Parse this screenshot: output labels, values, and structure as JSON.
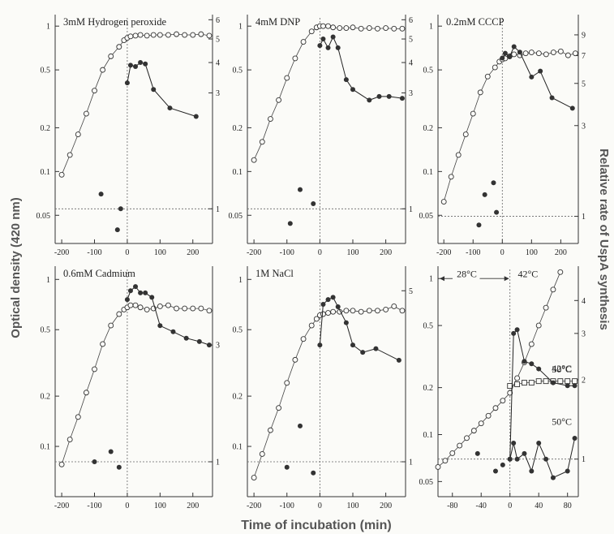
{
  "figure": {
    "ylabel_left": "Optical density (420 nm)",
    "ylabel_right": "Relative rate of UspA synthesis",
    "xlabel": "Time of incubation (min)"
  },
  "chart_data": [
    {
      "type": "line",
      "title": "3mM Hydrogen peroxide",
      "xlim": [
        -220,
        260
      ],
      "xticks": [
        -200,
        -100,
        0,
        100,
        200
      ],
      "od_ylim": [
        0.032,
        1.2
      ],
      "od_yscale": "log",
      "od_yticks": [
        0.05,
        0.1,
        0.2,
        0.5,
        1
      ],
      "rate_ylim": [
        0.72,
        6.3
      ],
      "rate_yticks": [
        1,
        3,
        4,
        5,
        6
      ],
      "baseline_rate": 1,
      "shift_time": 0,
      "series": [
        {
          "marker": "open-circle",
          "x": [
            -200,
            -175,
            -150,
            -125,
            -100,
            -75,
            -50,
            -25,
            -10,
            0,
            10,
            25,
            40,
            60,
            80,
            100,
            125,
            150,
            175,
            200,
            225,
            250
          ],
          "y": [
            0.095,
            0.13,
            0.18,
            0.25,
            0.36,
            0.5,
            0.62,
            0.72,
            0.8,
            0.83,
            0.85,
            0.86,
            0.87,
            0.86,
            0.87,
            0.87,
            0.87,
            0.88,
            0.87,
            0.87,
            0.88,
            0.86
          ]
        },
        {
          "marker": "filled-circle",
          "x": [
            -80,
            -30,
            -20,
            0,
            10,
            25,
            40,
            55,
            80,
            130,
            210
          ],
          "y": [
            1.15,
            0.82,
            1.0,
            3.3,
            3.9,
            3.85,
            4.0,
            3.95,
            3.1,
            2.6,
            2.4
          ]
        }
      ]
    },
    {
      "type": "line",
      "title": "4mM DNP",
      "xlim": [
        -220,
        260
      ],
      "xticks": [
        -200,
        -100,
        0,
        100,
        200
      ],
      "od_ylim": [
        0.032,
        1.2
      ],
      "od_yscale": "log",
      "od_yticks": [
        0.05,
        0.1,
        0.2,
        0.5,
        1
      ],
      "rate_ylim": [
        0.72,
        6.3
      ],
      "rate_yticks": [
        1,
        3,
        4,
        5,
        6
      ],
      "baseline_rate": 1,
      "shift_time": 0,
      "series": [
        {
          "marker": "open-circle",
          "x": [
            -200,
            -175,
            -150,
            -125,
            -100,
            -75,
            -50,
            -25,
            -10,
            0,
            10,
            25,
            40,
            60,
            80,
            100,
            125,
            150,
            175,
            200,
            225,
            250
          ],
          "y": [
            0.12,
            0.16,
            0.23,
            0.31,
            0.44,
            0.6,
            0.78,
            0.92,
            0.98,
            1.0,
            1.0,
            1.0,
            0.98,
            0.97,
            0.97,
            0.98,
            0.96,
            0.97,
            0.96,
            0.97,
            0.96,
            0.96
          ]
        },
        {
          "marker": "filled-circle",
          "x": [
            -90,
            -60,
            -20,
            0,
            10,
            25,
            40,
            55,
            80,
            100,
            150,
            180,
            210,
            250
          ],
          "y": [
            0.87,
            1.2,
            1.05,
            4.7,
            5.0,
            4.6,
            5.1,
            4.6,
            3.4,
            3.1,
            2.8,
            2.9,
            2.9,
            2.85
          ]
        }
      ]
    },
    {
      "type": "line",
      "title": "0.2mM CCCP",
      "xlim": [
        -220,
        260
      ],
      "xticks": [
        -200,
        -100,
        0,
        100,
        200
      ],
      "od_ylim": [
        0.032,
        1.2
      ],
      "od_yscale": "log",
      "od_yticks": [
        0.05,
        0.1,
        0.2,
        0.5,
        1
      ],
      "rate_ylim": [
        0.72,
        11.5
      ],
      "rate_yticks": [
        1,
        3,
        5,
        7,
        9
      ],
      "baseline_rate": 1,
      "shift_time": 0,
      "series": [
        {
          "marker": "open-circle",
          "x": [
            -200,
            -175,
            -150,
            -125,
            -100,
            -75,
            -50,
            -25,
            -10,
            0,
            10,
            25,
            40,
            60,
            80,
            100,
            125,
            150,
            175,
            200,
            225,
            250
          ],
          "y": [
            0.062,
            0.092,
            0.13,
            0.18,
            0.25,
            0.35,
            0.45,
            0.52,
            0.57,
            0.59,
            0.6,
            0.62,
            0.64,
            0.63,
            0.65,
            0.66,
            0.65,
            0.64,
            0.66,
            0.67,
            0.63,
            0.65
          ]
        },
        {
          "marker": "filled-circle",
          "x": [
            -80,
            -60,
            -30,
            -20,
            0,
            10,
            25,
            40,
            60,
            100,
            130,
            170,
            240
          ],
          "y": [
            0.9,
            1.3,
            1.5,
            1.05,
            6.8,
            7.2,
            6.9,
            7.8,
            7.3,
            5.4,
            5.8,
            4.2,
            3.7
          ]
        }
      ]
    },
    {
      "type": "line",
      "title": "0.6mM Cadmium",
      "xlim": [
        -220,
        260
      ],
      "xticks": [
        -200,
        -100,
        0,
        100,
        200
      ],
      "od_ylim": [
        0.05,
        1.2
      ],
      "od_yscale": "log",
      "od_yticks": [
        0.1,
        0.2,
        0.5,
        1
      ],
      "rate_ylim": [
        0.72,
        6.3
      ],
      "rate_yticks": [
        1,
        3
      ],
      "baseline_rate": 1,
      "shift_time": 0,
      "series": [
        {
          "marker": "open-circle",
          "x": [
            -200,
            -175,
            -150,
            -125,
            -100,
            -75,
            -50,
            -25,
            -10,
            0,
            10,
            25,
            40,
            60,
            80,
            100,
            125,
            150,
            175,
            200,
            225,
            250
          ],
          "y": [
            0.078,
            0.11,
            0.15,
            0.21,
            0.29,
            0.41,
            0.53,
            0.62,
            0.66,
            0.68,
            0.7,
            0.7,
            0.68,
            0.66,
            0.67,
            0.69,
            0.7,
            0.67,
            0.67,
            0.67,
            0.67,
            0.65
          ]
        },
        {
          "marker": "filled-circle",
          "x": [
            -100,
            -50,
            -25,
            0,
            10,
            25,
            40,
            55,
            75,
            100,
            140,
            180,
            220,
            250
          ],
          "y": [
            1.0,
            1.1,
            0.95,
            4.6,
            5.0,
            5.2,
            4.9,
            4.9,
            4.7,
            3.6,
            3.4,
            3.2,
            3.1,
            3.0
          ]
        }
      ]
    },
    {
      "type": "line",
      "title": "1M NaCl",
      "xlim": [
        -220,
        260
      ],
      "xticks": [
        -200,
        -100,
        0,
        100,
        200
      ],
      "od_ylim": [
        0.05,
        1.2
      ],
      "od_yscale": "log",
      "od_yticks": [
        0.1,
        0.2,
        0.5,
        1
      ],
      "rate_ylim": [
        0.72,
        6.3
      ],
      "rate_yticks": [
        1,
        5
      ],
      "baseline_rate": 1,
      "shift_time": 0,
      "series": [
        {
          "marker": "open-circle",
          "x": [
            -200,
            -175,
            -150,
            -125,
            -100,
            -75,
            -50,
            -25,
            -10,
            0,
            10,
            25,
            40,
            60,
            80,
            100,
            125,
            150,
            175,
            200,
            225,
            250
          ],
          "y": [
            0.065,
            0.09,
            0.125,
            0.17,
            0.24,
            0.33,
            0.44,
            0.53,
            0.58,
            0.61,
            0.62,
            0.63,
            0.64,
            0.64,
            0.65,
            0.65,
            0.64,
            0.65,
            0.65,
            0.66,
            0.69,
            0.65
          ]
        },
        {
          "marker": "filled-circle",
          "x": [
            -100,
            -60,
            -20,
            0,
            10,
            25,
            40,
            55,
            80,
            100,
            130,
            170,
            240
          ],
          "y": [
            0.95,
            1.4,
            0.9,
            3.0,
            4.4,
            4.6,
            4.7,
            4.3,
            3.7,
            3.0,
            2.8,
            2.9,
            2.6
          ]
        }
      ]
    },
    {
      "type": "line",
      "title": "",
      "xlim": [
        -100,
        95
      ],
      "xticks": [
        -80,
        -40,
        0,
        40,
        80
      ],
      "od_ylim": [
        0.04,
        1.2
      ],
      "od_yscale": "log",
      "od_yticks": [
        0.05,
        0.1,
        0.2,
        0.5,
        1
      ],
      "rate_ylim": [
        0.72,
        5.4
      ],
      "rate_yticks": [
        1,
        2,
        3,
        4
      ],
      "baseline_rate": 1,
      "shift_time": 0,
      "annotations": [
        {
          "text": "28°C",
          "x": -60,
          "od": 1.02
        },
        {
          "text": "42°C",
          "x": 25,
          "od": 1.02
        },
        {
          "text": "50°C",
          "x": 72,
          "od": 0.25
        },
        {
          "text": "42°C",
          "x": 72,
          "rate": 2.15
        },
        {
          "text": "50°C",
          "x": 72,
          "rate": 1.35
        }
      ],
      "series": [
        {
          "marker": "open-circle",
          "x": [
            -100,
            -90,
            -80,
            -70,
            -60,
            -50,
            -40,
            -30,
            -20,
            -10,
            0,
            10,
            20,
            30,
            40,
            50,
            60,
            70
          ],
          "y": [
            0.062,
            0.068,
            0.076,
            0.085,
            0.095,
            0.106,
            0.118,
            0.132,
            0.148,
            0.165,
            0.185,
            0.23,
            0.29,
            0.38,
            0.5,
            0.65,
            0.85,
            1.1
          ]
        },
        {
          "marker": "open-square",
          "x": [
            0,
            10,
            20,
            30,
            40,
            50,
            60,
            70,
            80,
            90
          ],
          "y": [
            0.205,
            0.21,
            0.215,
            0.215,
            0.22,
            0.22,
            0.22,
            0.22,
            0.22,
            0.22
          ]
        },
        {
          "marker": "filled-circle",
          "x": [
            -45,
            -20,
            -10,
            0,
            5,
            10,
            20,
            30,
            40,
            60,
            80,
            90
          ],
          "y": [
            1.05,
            0.9,
            0.95,
            1.0,
            3.0,
            3.1,
            2.35,
            2.3,
            2.2,
            1.95,
            1.9,
            1.9
          ]
        },
        {
          "marker": "filled-circle",
          "x": [
            0,
            5,
            10,
            20,
            30,
            40,
            50,
            60,
            80,
            90
          ],
          "y": [
            1.0,
            1.15,
            1.0,
            1.05,
            0.9,
            1.15,
            1.0,
            0.85,
            0.9,
            1.2
          ]
        }
      ]
    }
  ]
}
